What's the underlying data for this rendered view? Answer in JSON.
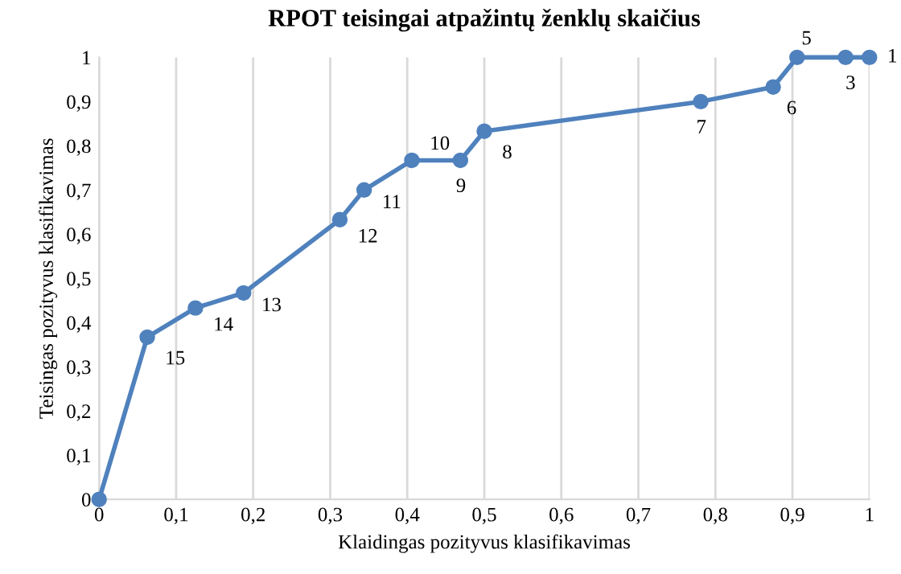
{
  "chart_data": {
    "type": "line",
    "title": "RPOT teisingai atpažintų ženklų skaičius",
    "xlabel": "Klaidingas pozityvus klasifikavimas",
    "ylabel": "Teisingas pozityvus klasifikavimas",
    "x": [
      0,
      0.0625,
      0.125,
      0.1875,
      0.3125,
      0.344,
      0.406,
      0.469,
      0.5,
      0.781,
      0.875,
      0.906,
      0.969,
      1
    ],
    "series": [
      {
        "color": "#4f81bd",
        "values": [
          0,
          0.367,
          0.433,
          0.467,
          0.633,
          0.7,
          0.767,
          0.767,
          0.833,
          0.9,
          0.933,
          1,
          1,
          1
        ]
      }
    ],
    "xlim": [
      0,
      1
    ],
    "ylim": [
      0,
      1
    ],
    "xticks": [
      0,
      {
        "value": 0.1,
        "label": "0,1"
      },
      {
        "value": 0.2,
        "label": "0,2"
      },
      {
        "value": 0.3,
        "label": "0,3"
      },
      {
        "value": 0.4,
        "label": "0,4"
      },
      {
        "value": 0.5,
        "label": "0,5"
      },
      {
        "value": 0.6,
        "label": "0,6"
      },
      {
        "value": 0.7,
        "label": "0,7"
      },
      {
        "value": 0.8,
        "label": "0,8"
      },
      {
        "value": 0.9,
        "label": "0,9"
      },
      1
    ],
    "yticks": [
      0,
      {
        "value": 0.1,
        "label": "0,1"
      },
      {
        "value": 0.2,
        "label": "0,2"
      },
      {
        "value": 0.3,
        "label": "0,3"
      },
      {
        "value": 0.4,
        "label": "0,4"
      },
      {
        "value": 0.5,
        "label": "0,5"
      },
      {
        "value": 0.6,
        "label": "0,6"
      },
      {
        "value": 0.7,
        "label": "0,7"
      },
      {
        "value": 0.8,
        "label": "0,8"
      },
      {
        "value": 0.9,
        "label": "0,9"
      },
      1
    ],
    "grid": "x",
    "marker": "circle",
    "line_style": "solid",
    "annotations": [
      {
        "text": "15",
        "x": 0.0625,
        "y": 0.367
      },
      {
        "text": "14",
        "x": 0.125,
        "y": 0.433
      },
      {
        "text": "13",
        "x": 0.1875,
        "y": 0.467
      },
      {
        "text": "12",
        "x": 0.3125,
        "y": 0.633
      },
      {
        "text": "11",
        "x": 0.344,
        "y": 0.7
      },
      {
        "text": "10",
        "x": 0.406,
        "y": 0.767
      },
      {
        "text": "9",
        "x": 0.469,
        "y": 0.767
      },
      {
        "text": "8",
        "x": 0.5,
        "y": 0.833
      },
      {
        "text": "7",
        "x": 0.781,
        "y": 0.9
      },
      {
        "text": "6",
        "x": 0.875,
        "y": 0.933
      },
      {
        "text": "5",
        "x": 0.906,
        "y": 1
      },
      {
        "text": "3",
        "x": 0.969,
        "y": 1
      },
      {
        "text": "1",
        "x": 1,
        "y": 1
      }
    ]
  }
}
